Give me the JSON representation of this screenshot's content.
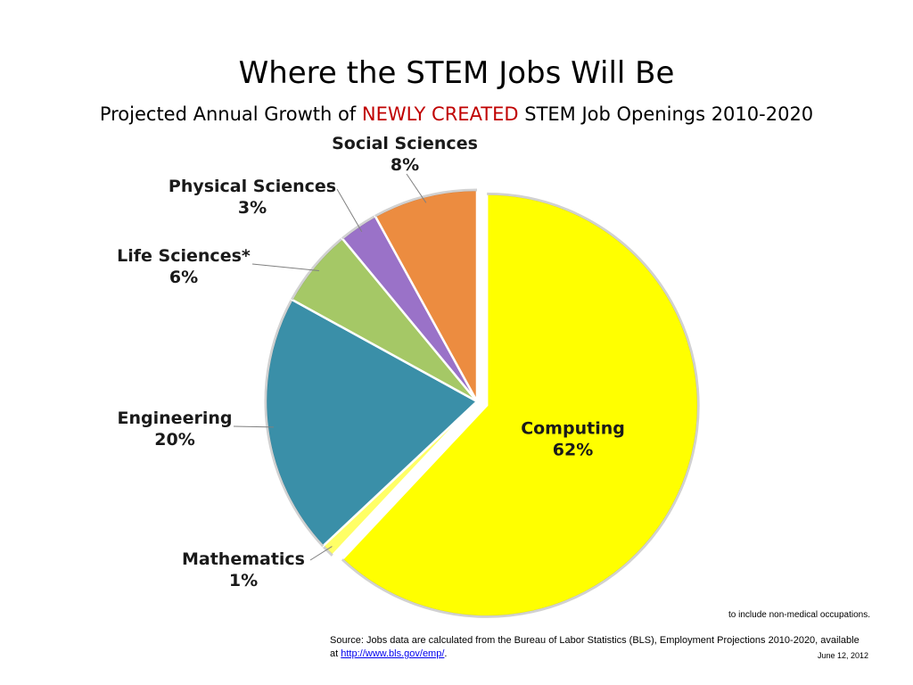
{
  "title": "Where the STEM Jobs Will Be",
  "subtitle": {
    "pre": "Projected Annual Growth of ",
    "highlight": "NEWLY CREATED",
    "post": " STEM Job Openings 2010-2020"
  },
  "colors": {
    "highlight": "#c00000",
    "computing": "#ffff00",
    "mathematics": "#ffff66",
    "engineering": "#3a8fa8",
    "life_sciences": "#a5c866",
    "physical_sciences": "#9a72c8",
    "social_sciences": "#ec8c40"
  },
  "chart_data": {
    "type": "pie",
    "title": "Where the STEM Jobs Will Be",
    "slices": [
      {
        "label": "Computing",
        "value": 62,
        "value_label": "62%",
        "color": "#ffff00",
        "exploded": true
      },
      {
        "label": "Mathematics",
        "value": 1,
        "value_label": "1%",
        "color": "#ffff66"
      },
      {
        "label": "Engineering",
        "value": 20,
        "value_label": "20%",
        "color": "#3a8fa8"
      },
      {
        "label": "Life Sciences*",
        "value": 6,
        "value_label": "6%",
        "color": "#a5c866"
      },
      {
        "label": "Physical Sciences",
        "value": 3,
        "value_label": "3%",
        "color": "#9a72c8"
      },
      {
        "label": "Social Sciences",
        "value": 8,
        "value_label": "8%",
        "color": "#ec8c40"
      }
    ],
    "start_angle": "12 o'clock",
    "direction": "clockwise"
  },
  "footnote": "to include non-medical occupations.",
  "source": {
    "text": "Source: Jobs data are calculated from the Bureau of Labor Statistics (BLS), Employment Projections 2010-2020, available at ",
    "link": "http://www.bls.gov/emp/",
    "end": "."
  },
  "date": "June 12, 2012"
}
